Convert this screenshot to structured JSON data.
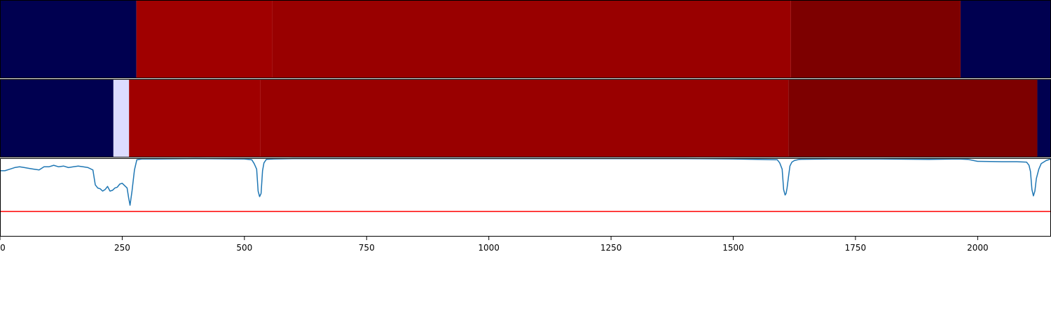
{
  "chart_data": [
    {
      "type": "heatmap",
      "panel": "top-segmentation",
      "xlim": [
        0,
        2150
      ],
      "segments": [
        {
          "start": 0,
          "end": 279,
          "color": "#000050"
        },
        {
          "start": 279,
          "end": 557,
          "color": "#a00000"
        },
        {
          "start": 557,
          "end": 1618,
          "color": "#990000"
        },
        {
          "start": 1618,
          "end": 1965,
          "color": "#7d0000"
        },
        {
          "start": 1965,
          "end": 2150,
          "color": "#000050"
        }
      ]
    },
    {
      "type": "heatmap",
      "panel": "middle-segmentation",
      "xlim": [
        0,
        2150
      ],
      "segments": [
        {
          "start": 0,
          "end": 232,
          "color": "#000050"
        },
        {
          "start": 232,
          "end": 264,
          "color": "#dcdcff"
        },
        {
          "start": 264,
          "end": 533,
          "color": "#a00000"
        },
        {
          "start": 533,
          "end": 1613,
          "color": "#990000"
        },
        {
          "start": 1613,
          "end": 2122,
          "color": "#7d0000"
        },
        {
          "start": 2122,
          "end": 2150,
          "color": "#000050"
        }
      ]
    },
    {
      "type": "line",
      "panel": "signal",
      "xlim": [
        0,
        2150
      ],
      "ylim": [
        0,
        1
      ],
      "xticks": [
        0,
        250,
        500,
        750,
        1000,
        1250,
        1500,
        1750,
        2000
      ],
      "xtick_labels": [
        "0",
        "250",
        "500",
        "750",
        "1000",
        "1250",
        "1500",
        "1750",
        "2000"
      ],
      "line_color": "#1f77b4",
      "threshold": {
        "value": 0.32,
        "color": "#ff0000"
      },
      "x": [
        0,
        10,
        20,
        30,
        40,
        50,
        60,
        70,
        80,
        90,
        100,
        110,
        120,
        130,
        140,
        150,
        160,
        170,
        180,
        190,
        195,
        200,
        205,
        210,
        215,
        220,
        225,
        230,
        235,
        240,
        245,
        250,
        255,
        260,
        263,
        266,
        270,
        275,
        280,
        290,
        320,
        400,
        500,
        515,
        520,
        525,
        528,
        531,
        534,
        537,
        540,
        545,
        560,
        600,
        700,
        800,
        1000,
        1200,
        1400,
        1500,
        1550,
        1590,
        1595,
        1600,
        1603,
        1606,
        1608,
        1610,
        1613,
        1616,
        1620,
        1625,
        1635,
        1700,
        1800,
        1900,
        1960,
        1980,
        2000,
        2050,
        2080,
        2100,
        2105,
        2108,
        2111,
        2114,
        2117,
        2120,
        2125,
        2130,
        2140,
        2150
      ],
      "y": [
        0.84,
        0.84,
        0.86,
        0.88,
        0.89,
        0.88,
        0.87,
        0.86,
        0.85,
        0.89,
        0.89,
        0.91,
        0.89,
        0.9,
        0.88,
        0.89,
        0.9,
        0.89,
        0.88,
        0.85,
        0.66,
        0.62,
        0.61,
        0.58,
        0.6,
        0.64,
        0.58,
        0.59,
        0.62,
        0.63,
        0.67,
        0.68,
        0.65,
        0.62,
        0.5,
        0.4,
        0.58,
        0.85,
        0.98,
        0.99,
        0.99,
        0.995,
        0.99,
        0.98,
        0.93,
        0.86,
        0.58,
        0.51,
        0.55,
        0.84,
        0.94,
        0.985,
        0.99,
        0.995,
        0.995,
        0.995,
        0.995,
        0.995,
        0.995,
        0.99,
        0.985,
        0.98,
        0.94,
        0.86,
        0.6,
        0.53,
        0.55,
        0.62,
        0.76,
        0.9,
        0.95,
        0.97,
        0.985,
        0.99,
        0.99,
        0.985,
        0.99,
        0.985,
        0.96,
        0.955,
        0.955,
        0.95,
        0.91,
        0.83,
        0.6,
        0.52,
        0.58,
        0.74,
        0.86,
        0.93,
        0.97,
        0.99
      ]
    }
  ]
}
